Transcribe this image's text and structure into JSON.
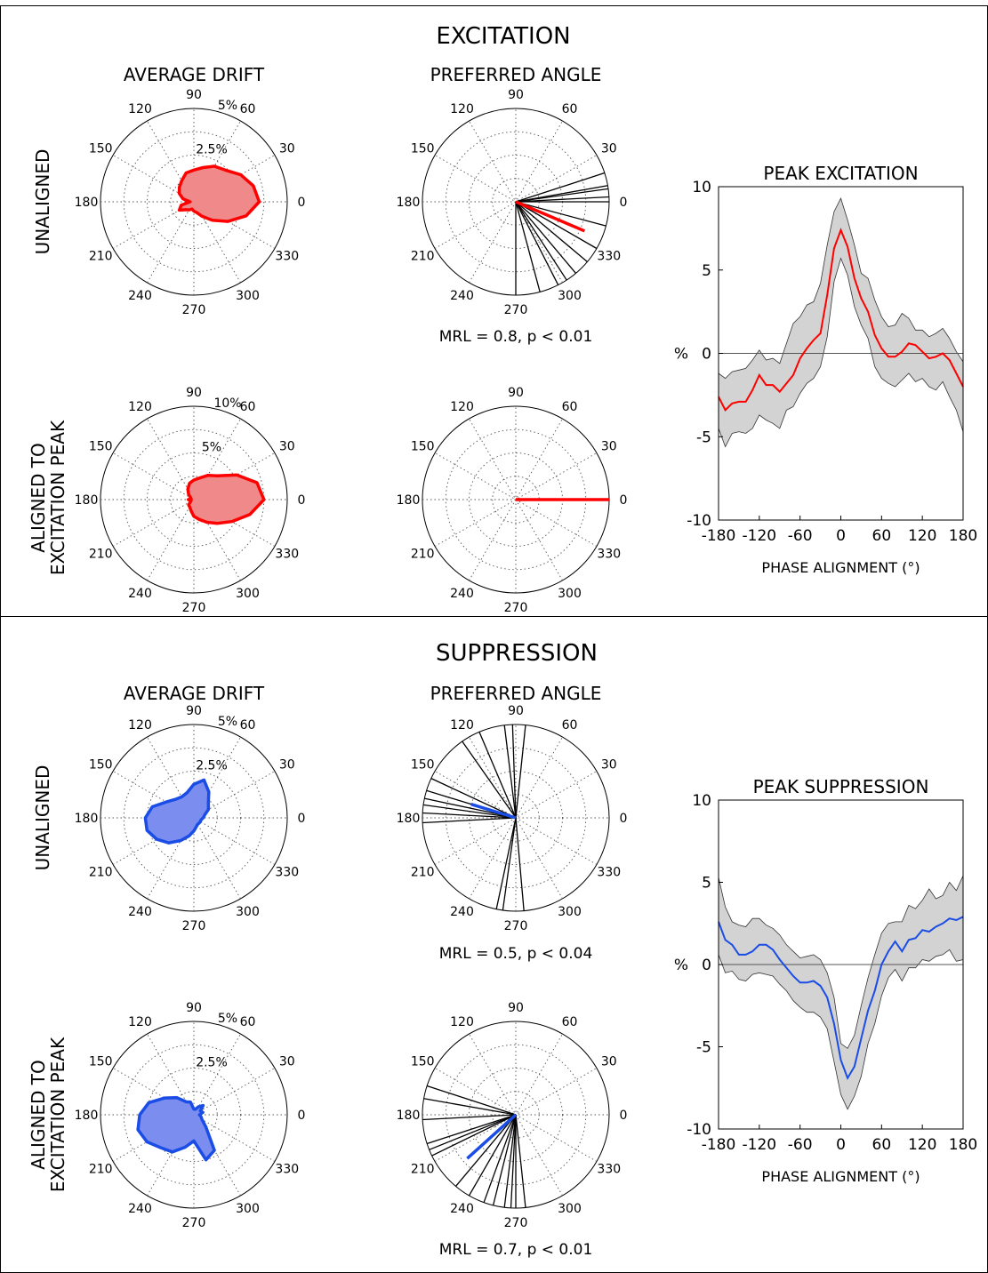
{
  "excitation": {
    "title": "EXCITATION",
    "row_labels": {
      "unaligned": "UNALIGNED",
      "aligned": [
        "ALIGNED TO",
        "EXCITATION PEAK"
      ]
    },
    "col_titles": {
      "drift": "AVERAGE DRIFT",
      "angle": "PREFERRED ANGLE"
    },
    "mrl_texts": {
      "unaligned": "MRL = 0.8, p < 0.01"
    },
    "side_plot_title": "PEAK EXCITATION"
  },
  "suppression": {
    "title": "SUPPRESSION",
    "row_labels": {
      "unaligned": "UNALIGNED",
      "aligned": [
        "ALIGNED TO",
        "EXCITATION PEAK"
      ]
    },
    "col_titles": {
      "drift": "AVERAGE DRIFT",
      "angle": "PREFERRED ANGLE"
    },
    "mrl_texts": {
      "unaligned": "MRL = 0.5, p < 0.04",
      "aligned": "MRL = 0.7, p < 0.01"
    },
    "side_plot_title": "PEAK SUPPRESSION"
  },
  "polar_angle_labels": [
    "0",
    "30",
    "60",
    "90",
    "120",
    "150",
    "180",
    "210",
    "240",
    "270",
    "300",
    "330"
  ],
  "colors": {
    "excitation": "#ff0000",
    "excitation_fill": "#f08a8a",
    "suppression": "#1a4ce6",
    "suppression_fill": "#7b8ef0",
    "band": "#d3d3d3"
  },
  "chart_data": [
    {
      "type": "polar",
      "panel": "excitation-unaligned-average-drift",
      "radial_labels": [
        "2.5%",
        "5%"
      ],
      "r_max": 5,
      "color": "#ff0000",
      "angles_deg": [
        0,
        15,
        30,
        45,
        60,
        75,
        90,
        105,
        120,
        135,
        150,
        165,
        180,
        195,
        210,
        225,
        240,
        255,
        270,
        285,
        300,
        315,
        330,
        345
      ],
      "values": [
        3.5,
        3.3,
        2.9,
        2.4,
        2.2,
        1.9,
        1.7,
        1.6,
        1.3,
        1.1,
        0.9,
        0.6,
        0.2,
        0.7,
        0.9,
        0.6,
        0.5,
        0.4,
        0.5,
        0.6,
        0.9,
        1.4,
        2.1,
        2.9
      ]
    },
    {
      "type": "polar",
      "panel": "excitation-unaligned-preferred-angle",
      "color": "#ff0000",
      "line_angles_deg": [
        8,
        3,
        0,
        345,
        330,
        320,
        310,
        303,
        297,
        285,
        270,
        10,
        18
      ],
      "mean_angle_deg": 337,
      "mean_length": 0.8
    },
    {
      "type": "polar",
      "panel": "excitation-aligned-average-drift",
      "radial_labels": [
        "5%",
        "10%"
      ],
      "r_max": 10,
      "color": "#ff0000",
      "angles_deg": [
        0,
        15,
        30,
        45,
        60,
        75,
        90,
        105,
        120,
        135,
        150,
        165,
        180,
        195,
        210,
        225,
        240,
        255,
        270,
        285,
        300,
        315,
        330,
        345
      ],
      "values": [
        7.5,
        7.0,
        5.3,
        3.6,
        3.0,
        2.4,
        2.1,
        1.8,
        1.3,
        0.8,
        0.4,
        0.3,
        0.6,
        0.3,
        0.4,
        0.8,
        0.9,
        1.2,
        1.8,
        2.2,
        2.8,
        3.6,
        4.7,
        6.2
      ]
    },
    {
      "type": "polar",
      "panel": "excitation-aligned-preferred-angle",
      "color": "#ff0000",
      "line_angles_deg": [],
      "mean_angle_deg": 0,
      "mean_length": 1.0
    },
    {
      "type": "polar",
      "panel": "suppression-unaligned-average-drift",
      "radial_labels": [
        "2.5%",
        "5%"
      ],
      "r_max": 5,
      "color": "#1a4ce6",
      "angles_deg": [
        0,
        15,
        30,
        45,
        60,
        75,
        90,
        105,
        120,
        135,
        150,
        165,
        180,
        195,
        210,
        225,
        240,
        255,
        270,
        285,
        300,
        315,
        330,
        345
      ],
      "values": [
        0.5,
        0.6,
        0.9,
        1.1,
        1.6,
        2.1,
        1.8,
        1.4,
        1.3,
        1.4,
        1.7,
        2.3,
        2.6,
        2.6,
        2.3,
        1.9,
        1.4,
        1.0,
        0.7,
        0.5,
        0.4,
        0.4,
        0.4,
        0.4
      ]
    },
    {
      "type": "polar",
      "panel": "suppression-unaligned-preferred-angle",
      "color": "#1a4ce6",
      "line_angles_deg": [
        84,
        92,
        97,
        113,
        125,
        155,
        163,
        168,
        172,
        177,
        183,
        275,
        262,
        258
      ],
      "mean_angle_deg": 163,
      "mean_length": 0.5
    },
    {
      "type": "polar",
      "panel": "suppression-aligned-average-drift",
      "radial_labels": [
        "2.5%",
        "5%"
      ],
      "r_max": 5,
      "color": "#1a4ce6",
      "angles_deg": [
        0,
        15,
        30,
        45,
        60,
        75,
        90,
        105,
        120,
        135,
        150,
        165,
        180,
        195,
        210,
        225,
        240,
        255,
        270,
        285,
        300,
        315,
        330,
        345
      ],
      "values": [
        0.3,
        0.5,
        0.4,
        0.7,
        0.5,
        0.3,
        0.3,
        0.7,
        0.8,
        1.3,
        1.8,
        2.5,
        2.9,
        3.1,
        2.9,
        2.5,
        2.3,
        1.8,
        1.4,
        2.5,
        2.2,
        0.9,
        0.5,
        0.4
      ]
    },
    {
      "type": "polar",
      "panel": "suppression-aligned-preferred-angle",
      "color": "#1a4ce6",
      "line_angles_deg": [
        162,
        170,
        183,
        198,
        202,
        206,
        230,
        240,
        250,
        256,
        263,
        267,
        270,
        276
      ],
      "mean_angle_deg": 222,
      "mean_length": 0.7
    },
    {
      "type": "line",
      "panel": "peak-excitation",
      "title": "PEAK EXCITATION",
      "xlabel": "PHASE ALIGNMENT (°)",
      "ylabel": "%",
      "xlim": [
        -180,
        180
      ],
      "ylim": [
        -10,
        10
      ],
      "xticks": [
        -180,
        -120,
        -60,
        0,
        60,
        120,
        180
      ],
      "yticks": [
        -10,
        -5,
        0,
        5,
        10
      ],
      "x": [
        -180,
        -170,
        -160,
        -150,
        -140,
        -130,
        -120,
        -110,
        -100,
        -90,
        -80,
        -70,
        -60,
        -50,
        -40,
        -30,
        -20,
        -10,
        0,
        10,
        20,
        30,
        40,
        50,
        60,
        70,
        80,
        90,
        100,
        110,
        120,
        130,
        140,
        150,
        160,
        170,
        180
      ],
      "y": [
        -2.6,
        -3.4,
        -3.0,
        -2.9,
        -2.9,
        -2.2,
        -1.3,
        -1.9,
        -1.9,
        -2.3,
        -1.8,
        -1.3,
        -0.3,
        0.3,
        0.8,
        1.2,
        3.5,
        6.3,
        7.4,
        6.4,
        4.5,
        3.3,
        2.5,
        1.1,
        0.3,
        -0.2,
        -0.2,
        0.1,
        0.6,
        0.5,
        0.1,
        -0.3,
        -0.2,
        0.0,
        -0.4,
        -1.2,
        -2.0
      ],
      "y_upper": [
        -1.2,
        -1.5,
        -1.1,
        -1.0,
        -0.9,
        -0.4,
        0.2,
        -0.4,
        -0.3,
        -0.6,
        0.6,
        1.8,
        2.2,
        2.9,
        3.1,
        4.2,
        6.5,
        8.5,
        9.3,
        8.0,
        6.5,
        4.8,
        4.5,
        3.2,
        2.2,
        1.6,
        1.7,
        2.4,
        2.1,
        1.4,
        1.4,
        1.0,
        1.2,
        1.5,
        0.9,
        0.1,
        -0.5
      ],
      "y_lower": [
        -4.5,
        -5.6,
        -4.8,
        -4.7,
        -4.8,
        -4.5,
        -3.7,
        -4.0,
        -4.2,
        -4.5,
        -3.4,
        -3.2,
        -2.4,
        -1.8,
        -1.5,
        -0.8,
        1.0,
        4.3,
        5.7,
        4.7,
        2.8,
        1.7,
        0.9,
        -0.8,
        -1.5,
        -1.8,
        -2.0,
        -1.6,
        -1.2,
        -1.7,
        -1.5,
        -2.0,
        -2.2,
        -1.7,
        -2.6,
        -3.4,
        -4.7
      ]
    },
    {
      "type": "line",
      "panel": "peak-suppression",
      "title": "PEAK SUPPRESSION",
      "xlabel": "PHASE ALIGNMENT (°)",
      "ylabel": "%",
      "xlim": [
        -180,
        180
      ],
      "ylim": [
        -10,
        10
      ],
      "xticks": [
        -180,
        -120,
        -60,
        0,
        60,
        120,
        180
      ],
      "yticks": [
        -10,
        -5,
        0,
        5,
        10
      ],
      "x": [
        -180,
        -170,
        -160,
        -150,
        -140,
        -130,
        -120,
        -110,
        -100,
        -90,
        -80,
        -70,
        -60,
        -50,
        -40,
        -30,
        -20,
        -10,
        0,
        10,
        20,
        30,
        40,
        50,
        60,
        70,
        80,
        90,
        100,
        110,
        120,
        130,
        140,
        150,
        160,
        170,
        180
      ],
      "y": [
        2.6,
        1.5,
        1.2,
        0.6,
        0.6,
        0.8,
        1.2,
        1.2,
        0.9,
        0.3,
        -0.2,
        -0.7,
        -1.1,
        -1.1,
        -1.0,
        -1.3,
        -2.0,
        -3.6,
        -5.8,
        -6.9,
        -6.2,
        -4.5,
        -2.8,
        -1.6,
        0.0,
        0.8,
        1.4,
        0.8,
        1.5,
        1.6,
        2.1,
        2.0,
        2.3,
        2.5,
        2.8,
        2.7,
        2.9
      ],
      "y_upper": [
        5.3,
        3.5,
        2.6,
        2.4,
        2.3,
        2.8,
        2.8,
        2.4,
        2.2,
        1.8,
        1.2,
        0.8,
        0.4,
        0.5,
        0.6,
        0.3,
        -0.5,
        -2.0,
        -4.8,
        -5.1,
        -4.3,
        -2.5,
        -0.8,
        0.6,
        1.9,
        2.5,
        2.6,
        2.6,
        3.6,
        3.4,
        3.9,
        4.6,
        4.0,
        4.2,
        5.0,
        4.5,
        5.4
      ],
      "y_lower": [
        0.6,
        -0.5,
        -0.4,
        -0.9,
        -1.0,
        -0.6,
        -0.5,
        -0.6,
        -0.7,
        -1.2,
        -1.6,
        -2.2,
        -2.6,
        -2.9,
        -2.9,
        -3.2,
        -3.9,
        -5.9,
        -7.9,
        -8.8,
        -8.0,
        -6.8,
        -4.8,
        -3.6,
        -1.9,
        -0.8,
        -0.3,
        -1.0,
        -0.2,
        -0.2,
        0.3,
        0.2,
        0.5,
        0.6,
        0.9,
        0.2,
        0.3
      ]
    }
  ]
}
